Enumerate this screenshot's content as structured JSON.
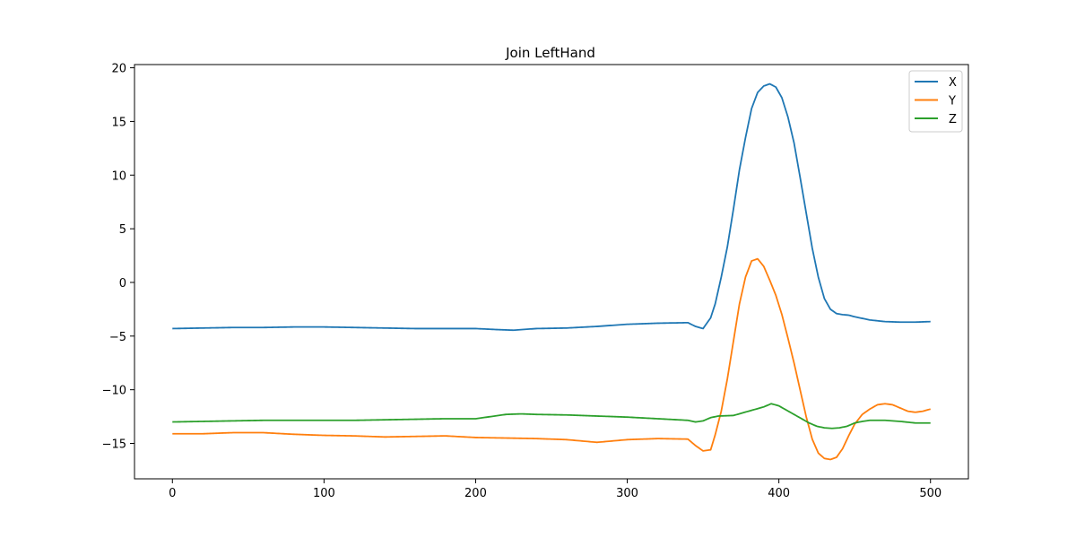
{
  "chart_data": {
    "type": "line",
    "title": "Join LeftHand",
    "xlabel": "",
    "ylabel": "",
    "xlim": [
      -25,
      525
    ],
    "ylim": [
      -18.3,
      20.3
    ],
    "xticks": [
      0,
      100,
      200,
      300,
      400,
      500
    ],
    "yticks": [
      -15,
      -10,
      -5,
      0,
      5,
      10,
      15,
      20
    ],
    "grid": false,
    "legend_position": "top-right",
    "series": [
      {
        "name": "X",
        "color": "#1f77b4",
        "x": [
          0,
          20,
          40,
          60,
          80,
          100,
          120,
          140,
          160,
          180,
          200,
          215,
          225,
          240,
          260,
          280,
          300,
          320,
          340,
          345,
          350,
          355,
          358,
          362,
          366,
          370,
          374,
          378,
          382,
          386,
          390,
          394,
          398,
          402,
          406,
          410,
          414,
          418,
          422,
          426,
          430,
          434,
          438,
          442,
          446,
          450,
          460,
          470,
          480,
          490,
          500
        ],
        "y": [
          -4.3,
          -4.25,
          -4.2,
          -4.2,
          -4.15,
          -4.15,
          -4.2,
          -4.25,
          -4.3,
          -4.3,
          -4.3,
          -4.4,
          -4.45,
          -4.3,
          -4.25,
          -4.1,
          -3.9,
          -3.8,
          -3.75,
          -4.1,
          -4.3,
          -3.3,
          -2.0,
          0.5,
          3.3,
          6.8,
          10.5,
          13.5,
          16.2,
          17.7,
          18.3,
          18.5,
          18.2,
          17.2,
          15.4,
          13.0,
          9.8,
          6.5,
          3.2,
          0.5,
          -1.5,
          -2.5,
          -2.9,
          -3.0,
          -3.05,
          -3.2,
          -3.5,
          -3.65,
          -3.7,
          -3.7,
          -3.65
        ]
      },
      {
        "name": "Y",
        "color": "#ff7f0e",
        "x": [
          0,
          20,
          40,
          60,
          80,
          100,
          120,
          140,
          160,
          180,
          200,
          220,
          240,
          260,
          280,
          300,
          320,
          340,
          345,
          350,
          355,
          358,
          362,
          366,
          370,
          374,
          378,
          382,
          386,
          390,
          394,
          398,
          402,
          406,
          410,
          414,
          418,
          422,
          426,
          430,
          434,
          438,
          442,
          446,
          450,
          455,
          460,
          465,
          470,
          475,
          480,
          485,
          490,
          495,
          500
        ],
        "y": [
          -14.1,
          -14.1,
          -14.0,
          -14.0,
          -14.15,
          -14.25,
          -14.3,
          -14.4,
          -14.35,
          -14.3,
          -14.45,
          -14.5,
          -14.55,
          -14.65,
          -14.9,
          -14.65,
          -14.55,
          -14.6,
          -15.2,
          -15.7,
          -15.6,
          -14.2,
          -12.0,
          -9.0,
          -5.5,
          -2.0,
          0.5,
          2.0,
          2.2,
          1.5,
          0.2,
          -1.2,
          -3.0,
          -5.2,
          -7.5,
          -10.0,
          -12.5,
          -14.6,
          -15.9,
          -16.4,
          -16.5,
          -16.3,
          -15.5,
          -14.3,
          -13.2,
          -12.3,
          -11.8,
          -11.4,
          -11.3,
          -11.4,
          -11.7,
          -12.0,
          -12.1,
          -12.0,
          -11.8
        ]
      },
      {
        "name": "Z",
        "color": "#2ca02c",
        "x": [
          0,
          20,
          40,
          60,
          80,
          100,
          120,
          140,
          160,
          180,
          200,
          210,
          220,
          230,
          240,
          260,
          280,
          300,
          320,
          340,
          345,
          350,
          355,
          360,
          370,
          380,
          390,
          395,
          400,
          405,
          410,
          415,
          420,
          425,
          430,
          435,
          440,
          445,
          450,
          455,
          460,
          470,
          480,
          490,
          500
        ],
        "y": [
          -13.0,
          -12.95,
          -12.9,
          -12.85,
          -12.85,
          -12.85,
          -12.85,
          -12.8,
          -12.75,
          -12.7,
          -12.7,
          -12.5,
          -12.3,
          -12.25,
          -12.3,
          -12.35,
          -12.45,
          -12.55,
          -12.7,
          -12.85,
          -13.0,
          -12.9,
          -12.6,
          -12.45,
          -12.4,
          -12.0,
          -11.6,
          -11.3,
          -11.5,
          -11.9,
          -12.3,
          -12.7,
          -13.1,
          -13.4,
          -13.55,
          -13.6,
          -13.55,
          -13.4,
          -13.1,
          -12.95,
          -12.85,
          -12.85,
          -12.95,
          -13.1,
          -13.1
        ]
      }
    ]
  }
}
